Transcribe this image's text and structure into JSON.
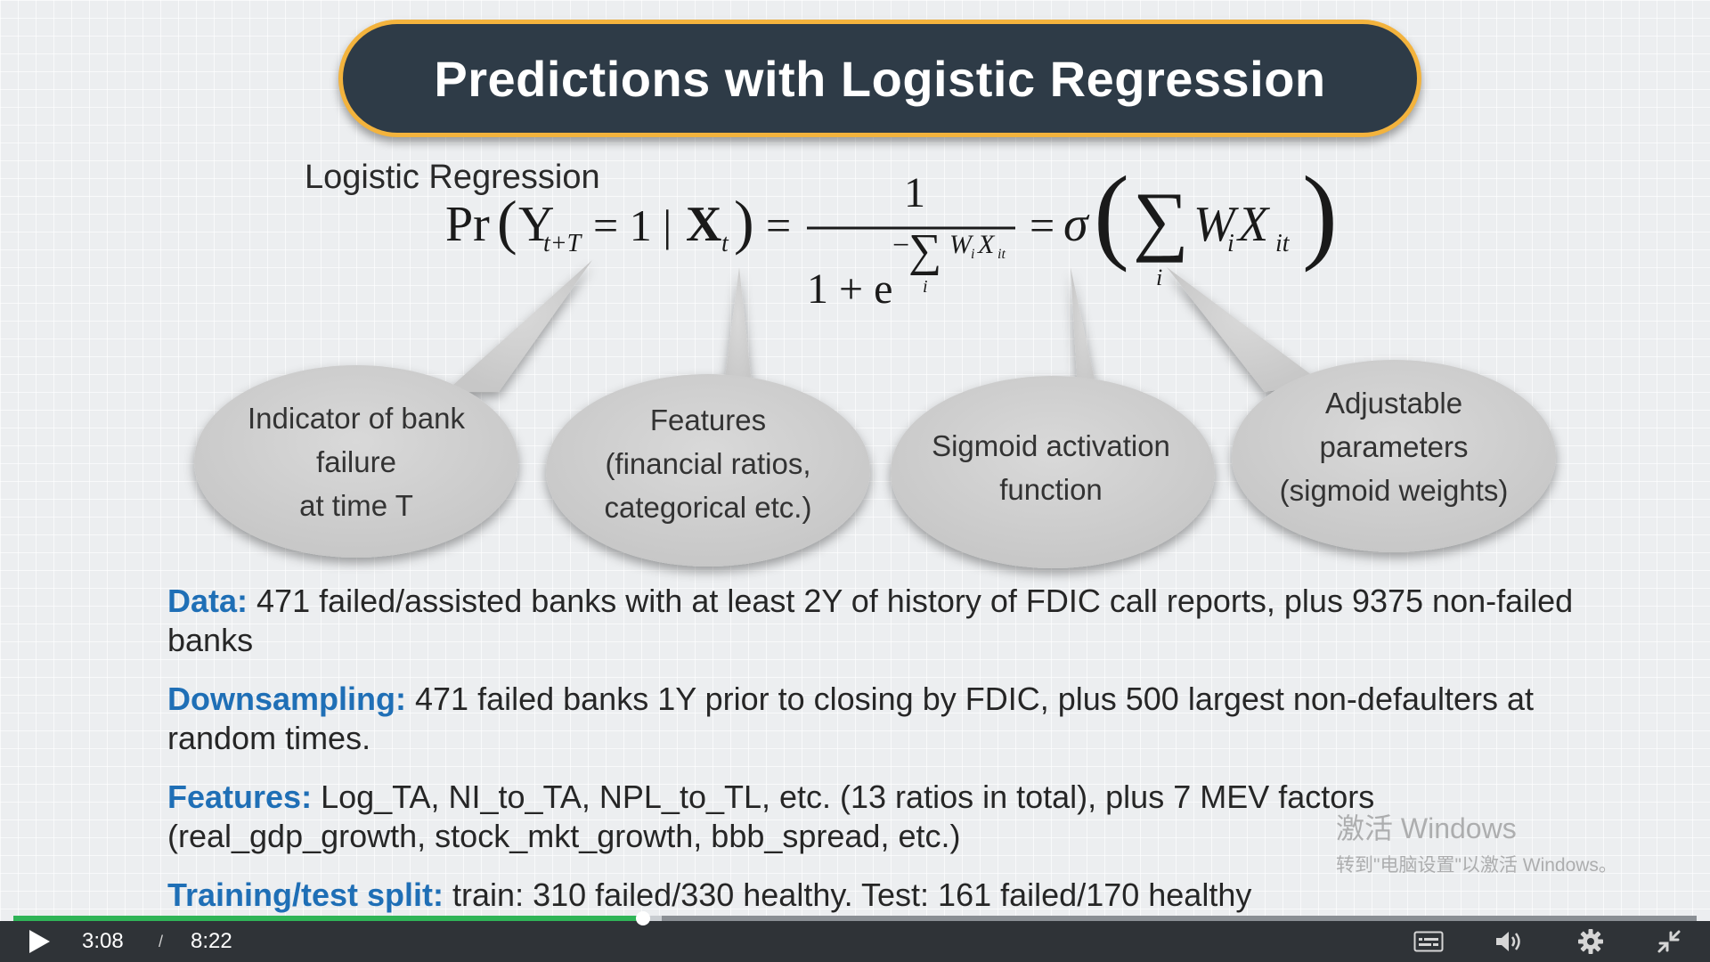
{
  "slide": {
    "title": "Predictions with Logistic Regression",
    "subtitle": "Logistic Regression",
    "formula": {
      "pr": "Pr",
      "y": "Y",
      "y_sub": "t+T",
      "eq_one": "= 1 |",
      "x": "X",
      "x_sub": "t",
      "equals": "=",
      "numerator": "1",
      "denominator": "1 + e",
      "sum": "∑",
      "sum_sub": "i",
      "w": "W",
      "w_sub": "i",
      "x2": "X",
      "x2_sub": "it",
      "minus": "−",
      "sigma": "σ"
    },
    "callouts": [
      {
        "lines": [
          "Indicator of bank",
          "failure",
          "at time T"
        ]
      },
      {
        "lines": [
          "Features",
          "(financial ratios,",
          "categorical etc.)"
        ]
      },
      {
        "lines": [
          "Sigmoid activation",
          "function"
        ]
      },
      {
        "lines": [
          "Adjustable",
          "parameters",
          "(sigmoid weights)"
        ]
      }
    ],
    "items": [
      {
        "key": "Data:",
        "text": " 471 failed/assisted banks with at least 2Y of history of FDIC call reports, plus 9375 non-failed banks"
      },
      {
        "key": "Downsampling:",
        "text": " 471 failed banks 1Y prior to closing by FDIC, plus 500 largest non-defaulters  at random times."
      },
      {
        "key": "Features:",
        "text": " Log_TA, NI_to_TA, NPL_to_TL, etc. (13 ratios in total), plus 7 MEV factors (real_gdp_growth, stock_mkt_growth, bbb_spread, etc.)"
      },
      {
        "key": "Training/test split:",
        "text": " train: 310 failed/330 healthy. Test: 161 failed/170 healthy"
      }
    ]
  },
  "watermark": {
    "line1": "激活 Windows",
    "line2": "转到\"电脑设置\"以激活 Windows。"
  },
  "player": {
    "current_time": "3:08",
    "separator": "/",
    "total_time": "8:22",
    "progress": 0.374,
    "buffered": 0.385,
    "colors": {
      "progress": "#2fb457",
      "bar": "#2f3337"
    },
    "icons": [
      "play-icon",
      "captions-icon",
      "volume-icon",
      "settings-gear-icon",
      "exit-fullscreen-icon"
    ]
  }
}
